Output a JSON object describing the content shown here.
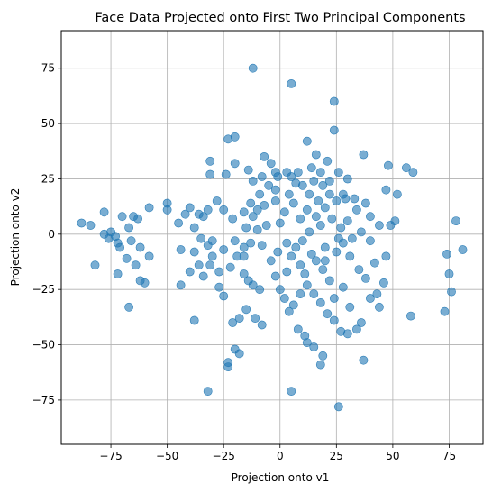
{
  "chart_data": {
    "type": "scatter",
    "title": "Face Data Projected onto First Two Principal Components",
    "xlabel": "Projection onto v1",
    "ylabel": "Projection onto v2",
    "xlim": [
      -97,
      90
    ],
    "ylim": [
      -95,
      92
    ],
    "xticks": [
      -75,
      -50,
      -25,
      0,
      25,
      50,
      75
    ],
    "yticks": [
      -75,
      -50,
      -25,
      0,
      25,
      50,
      75
    ],
    "xtick_labels": [
      "−75",
      "−50",
      "−25",
      "0",
      "25",
      "50",
      "75"
    ],
    "ytick_labels": [
      "−75",
      "−50",
      "−25",
      "0",
      "25",
      "50",
      "75"
    ],
    "grid": true,
    "point_color": "#1f77b4",
    "point_alpha": 0.6,
    "series": [
      {
        "points": [
          [
            -12,
            75
          ],
          [
            5,
            68
          ],
          [
            24,
            60
          ],
          [
            24,
            47
          ],
          [
            -23,
            43
          ],
          [
            -20,
            44
          ],
          [
            12,
            42
          ],
          [
            -31,
            33
          ],
          [
            -20,
            32
          ],
          [
            -31,
            27
          ],
          [
            -24,
            27
          ],
          [
            -7,
            35
          ],
          [
            -4,
            32
          ],
          [
            -2,
            28
          ],
          [
            -5,
            22
          ],
          [
            3,
            28
          ],
          [
            8,
            28
          ],
          [
            14,
            30
          ],
          [
            16,
            36
          ],
          [
            21,
            33
          ],
          [
            18,
            28
          ],
          [
            26,
            28
          ],
          [
            30,
            25
          ],
          [
            37,
            36
          ],
          [
            48,
            31
          ],
          [
            56,
            30
          ],
          [
            59,
            28
          ],
          [
            -14,
            29
          ],
          [
            -12,
            24
          ],
          [
            -2,
            20
          ],
          [
            5,
            26
          ],
          [
            10,
            22
          ],
          [
            15,
            24
          ],
          [
            19,
            22
          ],
          [
            22,
            18
          ],
          [
            28,
            18
          ],
          [
            33,
            16
          ],
          [
            38,
            14
          ],
          [
            47,
            20
          ],
          [
            52,
            18
          ],
          [
            -88,
            5
          ],
          [
            -84,
            4
          ],
          [
            -78,
            10
          ],
          [
            -75,
            1
          ],
          [
            -73,
            -1
          ],
          [
            -70,
            8
          ],
          [
            -65,
            8
          ],
          [
            -63,
            7
          ],
          [
            -67,
            3
          ],
          [
            -72,
            -4
          ],
          [
            -76,
            -2
          ],
          [
            -78,
            0
          ],
          [
            -71,
            -6
          ],
          [
            -66,
            -3
          ],
          [
            -62,
            -6
          ],
          [
            -58,
            -10
          ],
          [
            -68,
            -11
          ],
          [
            -64,
            -14
          ],
          [
            -58,
            12
          ],
          [
            -72,
            -18
          ],
          [
            -67,
            -33
          ],
          [
            -62,
            -21
          ],
          [
            -60,
            -22
          ],
          [
            -82,
            -14
          ],
          [
            -50,
            14
          ],
          [
            -50,
            11
          ],
          [
            -40,
            12
          ],
          [
            -42,
            9
          ],
          [
            -45,
            5
          ],
          [
            -36,
            9
          ],
          [
            -34,
            8
          ],
          [
            -32,
            11
          ],
          [
            -38,
            3
          ],
          [
            -35,
            -2
          ],
          [
            -32,
            -5
          ],
          [
            -38,
            -8
          ],
          [
            -44,
            -7
          ],
          [
            -28,
            15
          ],
          [
            -25,
            11
          ],
          [
            -21,
            7
          ],
          [
            -16,
            10
          ],
          [
            -13,
            14
          ],
          [
            -10,
            11
          ],
          [
            -7,
            13
          ],
          [
            -12,
            8
          ],
          [
            -15,
            3
          ],
          [
            -10,
            2
          ],
          [
            -6,
            4
          ],
          [
            -20,
            -3
          ],
          [
            -16,
            -6
          ],
          [
            -13,
            -4
          ],
          [
            -8,
            -5
          ],
          [
            -22,
            -15
          ],
          [
            -19,
            -10
          ],
          [
            -16,
            -18
          ],
          [
            -14,
            -21
          ],
          [
            -12,
            -23
          ],
          [
            -9,
            -25
          ],
          [
            -27,
            -17
          ],
          [
            -34,
            -19
          ],
          [
            -36,
            -14
          ],
          [
            -40,
            -17
          ],
          [
            -44,
            -23
          ],
          [
            -38,
            -39
          ],
          [
            -31,
            -14
          ],
          [
            -30,
            -10
          ],
          [
            -27,
            -24
          ],
          [
            -25,
            -28
          ],
          [
            -21,
            -40
          ],
          [
            -18,
            -38
          ],
          [
            -15,
            -34
          ],
          [
            -11,
            -38
          ],
          [
            -8,
            -41
          ],
          [
            -20,
            -52
          ],
          [
            -18,
            -54
          ],
          [
            -23,
            -58
          ],
          [
            -23,
            -60
          ],
          [
            -32,
            -71
          ],
          [
            -2,
            15
          ],
          [
            2,
            10
          ],
          [
            4,
            18
          ],
          [
            0,
            5
          ],
          [
            6,
            14
          ],
          [
            9,
            7
          ],
          [
            12,
            11
          ],
          [
            16,
            8
          ],
          [
            20,
            12
          ],
          [
            23,
            7
          ],
          [
            27,
            3
          ],
          [
            30,
            6
          ],
          [
            34,
            11
          ],
          [
            40,
            8
          ],
          [
            44,
            4
          ],
          [
            49,
            4
          ],
          [
            51,
            6
          ],
          [
            3,
            -4
          ],
          [
            5,
            -10
          ],
          [
            7,
            -6
          ],
          [
            9,
            -14
          ],
          [
            11,
            -18
          ],
          [
            14,
            -9
          ],
          [
            16,
            -12
          ],
          [
            19,
            -16
          ],
          [
            22,
            -21
          ],
          [
            25,
            -8
          ],
          [
            28,
            -4
          ],
          [
            31,
            -10
          ],
          [
            35,
            -16
          ],
          [
            38,
            -20
          ],
          [
            42,
            -13
          ],
          [
            46,
            -22
          ],
          [
            -2,
            -19
          ],
          [
            0,
            -25
          ],
          [
            2,
            -29
          ],
          [
            4,
            -35
          ],
          [
            6,
            -32
          ],
          [
            9,
            -27
          ],
          [
            12,
            -23
          ],
          [
            15,
            -27
          ],
          [
            18,
            -31
          ],
          [
            21,
            -36
          ],
          [
            24,
            -29
          ],
          [
            28,
            -24
          ],
          [
            31,
            -33
          ],
          [
            36,
            -40
          ],
          [
            40,
            -29
          ],
          [
            43,
            -27
          ],
          [
            44,
            -33
          ],
          [
            8,
            -43
          ],
          [
            11,
            -46
          ],
          [
            12,
            -49
          ],
          [
            15,
            -51
          ],
          [
            18,
            -59
          ],
          [
            19,
            -55
          ],
          [
            24,
            -39
          ],
          [
            27,
            -44
          ],
          [
            30,
            -45
          ],
          [
            34,
            -43
          ],
          [
            37,
            -57
          ],
          [
            58,
            -37
          ],
          [
            5,
            -71
          ],
          [
            26,
            -78
          ],
          [
            73,
            -35
          ],
          [
            74,
            -9
          ],
          [
            75,
            -18
          ],
          [
            76,
            -26
          ],
          [
            78,
            6
          ],
          [
            81,
            -7
          ],
          [
            20,
            -6
          ],
          [
            26,
            -2
          ],
          [
            36,
            1
          ],
          [
            13,
            1
          ],
          [
            22,
            24
          ],
          [
            25,
            15
          ],
          [
            29,
            16
          ],
          [
            -16,
            -10
          ],
          [
            -25,
            -7
          ],
          [
            -30,
            -3
          ],
          [
            -4,
            -12
          ],
          [
            -1,
            -8
          ],
          [
            3,
            -17
          ],
          [
            10,
            -3
          ],
          [
            18,
            4
          ],
          [
            32,
            -2
          ],
          [
            47,
            -10
          ],
          [
            40,
            -3
          ],
          [
            -8,
            26
          ],
          [
            -1,
            26
          ],
          [
            7,
            23
          ],
          [
            13,
            18
          ],
          [
            17,
            15
          ],
          [
            -9,
            18
          ],
          [
            20,
            -12
          ]
        ]
      }
    ]
  }
}
